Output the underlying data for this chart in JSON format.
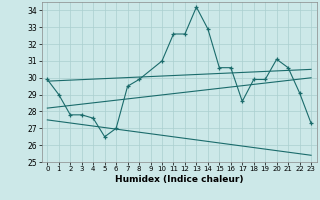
{
  "xlabel": "Humidex (Indice chaleur)",
  "background_color": "#cce8e8",
  "line_color": "#1a6b6b",
  "grid_color": "#aacfcf",
  "xlim": [
    -0.5,
    23.5
  ],
  "ylim": [
    25,
    34.5
  ],
  "yticks": [
    25,
    26,
    27,
    28,
    29,
    30,
    31,
    32,
    33,
    34
  ],
  "xticks": [
    0,
    1,
    2,
    3,
    4,
    5,
    6,
    7,
    8,
    9,
    10,
    11,
    12,
    13,
    14,
    15,
    16,
    17,
    18,
    19,
    20,
    21,
    22,
    23
  ],
  "line1_x": [
    0,
    1,
    2,
    3,
    4,
    5,
    6,
    7,
    8,
    10,
    11,
    12,
    13,
    14,
    15,
    16,
    17,
    18,
    19,
    20,
    21,
    22,
    23
  ],
  "line1_y": [
    29.9,
    29.0,
    27.8,
    27.8,
    27.6,
    26.5,
    27.0,
    29.5,
    29.9,
    31.0,
    32.6,
    32.6,
    34.2,
    32.9,
    30.6,
    30.6,
    28.6,
    29.9,
    29.9,
    31.1,
    30.6,
    29.1,
    27.3
  ],
  "line2_x": [
    0,
    23
  ],
  "line2_y": [
    29.8,
    30.5
  ],
  "line3_x": [
    0,
    23
  ],
  "line3_y": [
    28.2,
    30.0
  ],
  "line4_x": [
    0,
    23
  ],
  "line4_y": [
    27.5,
    25.4
  ]
}
